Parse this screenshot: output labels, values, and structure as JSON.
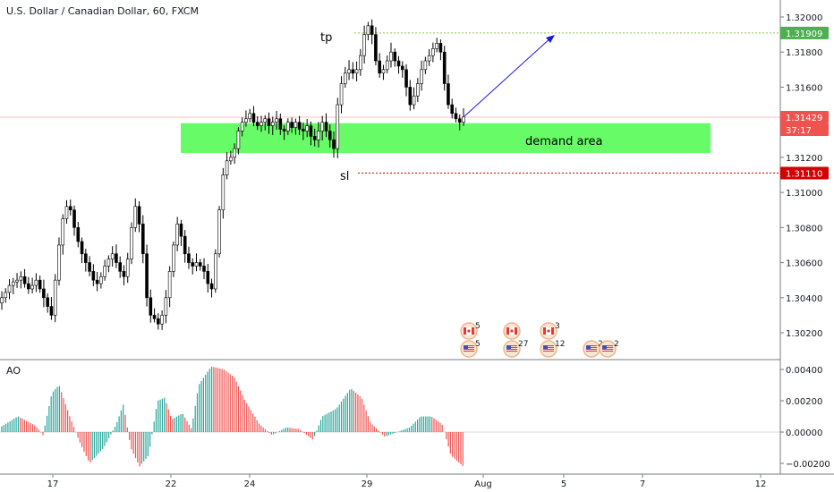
{
  "chart_data": {
    "type": "candlestick",
    "title": "U.S. Dollar / Canadian Dollar, 60, FXCM",
    "price_axis": {
      "ylim": [
        1.3005,
        1.321
      ],
      "ticks": [
        "1.32000",
        "1.31800",
        "1.31600",
        "1.31400",
        "1.31200",
        "1.31000",
        "1.30800",
        "1.30600",
        "1.30400",
        "1.30200"
      ]
    },
    "time_axis": {
      "ticks": [
        "17",
        "22",
        "24",
        "29",
        "Aug",
        "5",
        "7",
        "12"
      ]
    },
    "price_tags": [
      {
        "label": "1.31909",
        "value": 1.31909,
        "color": "#4caf50"
      },
      {
        "label": "1.31429",
        "value": 1.31429,
        "color": "#ef5350"
      },
      {
        "label": "37:17",
        "value": 1.31385,
        "color": "#ef5350"
      },
      {
        "label": "1.31110",
        "value": 1.3111,
        "color": "#d50000"
      }
    ],
    "close_series": [
      1.304,
      1.3043,
      1.3047,
      1.3049,
      1.305,
      1.3052,
      1.3048,
      1.3045,
      1.3047,
      1.305,
      1.3045,
      1.304,
      1.3035,
      1.303,
      1.305,
      1.307,
      1.3085,
      1.3092,
      1.309,
      1.308,
      1.3072,
      1.3065,
      1.306,
      1.3055,
      1.305,
      1.3048,
      1.3052,
      1.3058,
      1.3062,
      1.3065,
      1.306,
      1.3055,
      1.3052,
      1.3062,
      1.308,
      1.3092,
      1.3082,
      1.3065,
      1.304,
      1.303,
      1.3028,
      1.3025,
      1.303,
      1.304,
      1.3055,
      1.307,
      1.3082,
      1.3075,
      1.3065,
      1.306,
      1.3058,
      1.306,
      1.3058,
      1.3055,
      1.3048,
      1.3045,
      1.3065,
      1.309,
      1.311,
      1.3118,
      1.312,
      1.3125,
      1.3135,
      1.314,
      1.3142,
      1.3145,
      1.314,
      1.3138,
      1.314,
      1.3142,
      1.3138,
      1.314,
      1.3142,
      1.3136,
      1.3135,
      1.314,
      1.3137,
      1.314,
      1.3136,
      1.3135,
      1.3138,
      1.3132,
      1.313,
      1.3135,
      1.314,
      1.3135,
      1.313,
      1.3125,
      1.315,
      1.3162,
      1.3168,
      1.317,
      1.3168,
      1.317,
      1.3178,
      1.319,
      1.3195,
      1.319,
      1.3175,
      1.3168,
      1.317,
      1.3175,
      1.318,
      1.3175,
      1.3172,
      1.317,
      1.316,
      1.315,
      1.3155,
      1.3162,
      1.317,
      1.3175,
      1.3178,
      1.3182,
      1.3185,
      1.318,
      1.3162,
      1.315,
      1.3145,
      1.3142,
      1.314,
      1.3143
    ],
    "zones": [
      {
        "label": "demand area",
        "y_low": 1.31225,
        "y_high": 1.31395,
        "color": "#4cfb4c"
      }
    ],
    "lines": [
      {
        "label": "tp",
        "value": 1.31909,
        "color": "#8bc34a",
        "style": "dotted"
      },
      {
        "label": "sl",
        "value": 1.3111,
        "color": "#ef5350",
        "style": "dotted"
      }
    ],
    "indicator": {
      "name": "AO",
      "ylim": [
        -0.0025,
        0.0046
      ],
      "ticks": [
        "0.00400",
        "0.00200",
        "0.00000",
        "−0.00200"
      ]
    },
    "events": [
      {
        "flag": "CA",
        "count": "5"
      },
      {
        "flag": "US",
        "count": "5"
      },
      {
        "flag": "CA",
        "count": ""
      },
      {
        "flag": "US",
        "count": "27"
      },
      {
        "flag": "CA",
        "count": "3"
      },
      {
        "flag": "US",
        "count": "12"
      },
      {
        "flag": "US",
        "count": "2"
      },
      {
        "flag": "US",
        "count": "2"
      }
    ],
    "colors": {
      "up": "#26a69a",
      "down": "#ef5350",
      "candle_up": "#000000",
      "arrow": "#1a1adf"
    }
  }
}
